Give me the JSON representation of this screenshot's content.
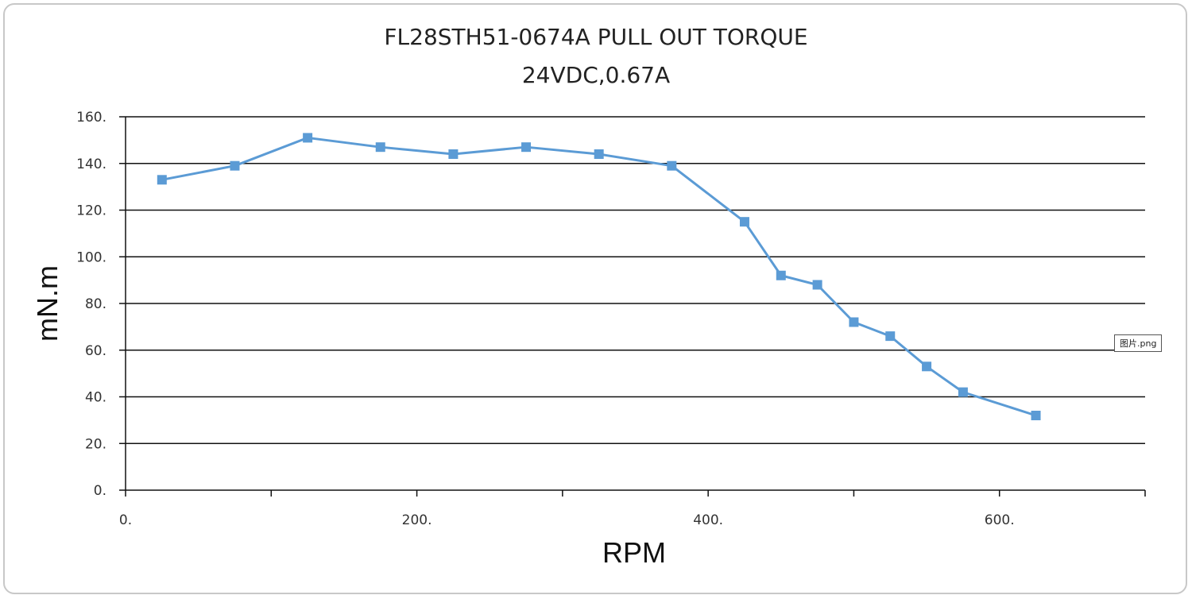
{
  "chart_data": {
    "type": "line",
    "title": "FL28STH51-0674A PULL OUT TORQUE",
    "subtitle": "24VDC,0.67A",
    "xlabel": "RPM",
    "ylabel": "mN.m",
    "xlim": [
      0,
      700
    ],
    "ylim": [
      0,
      160
    ],
    "xticks": [
      0,
      100,
      200,
      300,
      400,
      500,
      600,
      700
    ],
    "xtick_labels": [
      "0.",
      "",
      "200.",
      "",
      "400.",
      "",
      "600.",
      ""
    ],
    "yticks": [
      0,
      20,
      40,
      60,
      80,
      100,
      120,
      140,
      160
    ],
    "ytick_labels": [
      "0.",
      "20.",
      "40.",
      "60.",
      "80.",
      "100.",
      "120.",
      "140.",
      "160."
    ],
    "grid": "horizontal",
    "color": "#5b9bd5",
    "series": [
      {
        "x": [
          25,
          75,
          125,
          175,
          225,
          275,
          325,
          375,
          425,
          450,
          475,
          500,
          525,
          550,
          575,
          625
        ],
        "y": [
          133,
          139,
          151,
          147,
          144,
          147,
          144,
          139,
          115,
          92,
          88,
          72,
          66,
          53,
          42,
          32
        ]
      }
    ]
  },
  "badge": {
    "label": "图片.png"
  }
}
